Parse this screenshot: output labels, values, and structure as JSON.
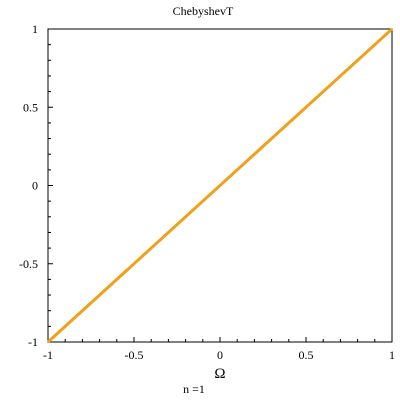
{
  "chart_data": {
    "type": "line",
    "title": "ChebyshevT",
    "xlabel": "Ω",
    "ylabel": "",
    "caption": "n =1",
    "xlim": [
      -1,
      1
    ],
    "ylim": [
      -1,
      1
    ],
    "x_ticks": [
      -1,
      -0.5,
      0,
      0.5,
      1
    ],
    "y_ticks": [
      -1,
      -0.5,
      0,
      0.5,
      1
    ],
    "x_tick_labels": [
      "-1",
      "-0.5",
      "0",
      "0.5",
      "1"
    ],
    "y_tick_labels": [
      "-1",
      "-0.5",
      "0",
      "0.5",
      "1"
    ],
    "grid": false,
    "series": [
      {
        "color": "#f0a01a",
        "x": [
          -1,
          1
        ],
        "y": [
          -1,
          1
        ]
      }
    ]
  }
}
